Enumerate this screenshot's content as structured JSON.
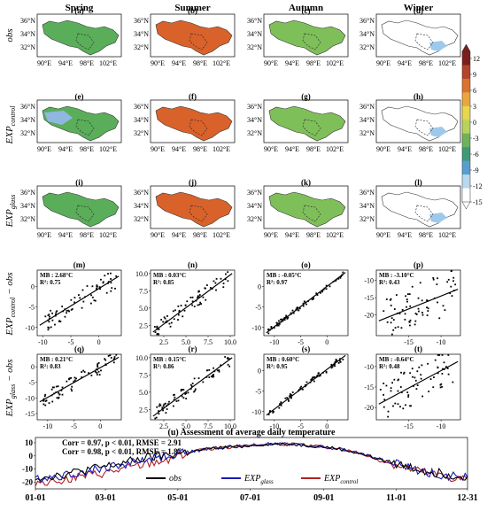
{
  "seasons": [
    "Spring",
    "Summer",
    "Autumn",
    "Winter"
  ],
  "row_labels": {
    "obs": "obs",
    "control_base": "EXP",
    "control_sub": "control",
    "glass_base": "EXP",
    "glass_sub": "glass",
    "diff_obs": "− obs"
  },
  "map_panels": [
    {
      "letter": "(a)",
      "row": 0,
      "col": 0
    },
    {
      "letter": "(b)",
      "row": 0,
      "col": 1
    },
    {
      "letter": "(c)",
      "row": 0,
      "col": 2
    },
    {
      "letter": "(d)",
      "row": 0,
      "col": 3
    },
    {
      "letter": "(e)",
      "row": 1,
      "col": 0
    },
    {
      "letter": "(f)",
      "row": 1,
      "col": 1
    },
    {
      "letter": "(g)",
      "row": 1,
      "col": 2
    },
    {
      "letter": "(h)",
      "row": 1,
      "col": 3
    },
    {
      "letter": "(i)",
      "row": 2,
      "col": 0
    },
    {
      "letter": "(j)",
      "row": 2,
      "col": 1
    },
    {
      "letter": "(k)",
      "row": 2,
      "col": 2
    },
    {
      "letter": "(l)",
      "row": 2,
      "col": 3
    }
  ],
  "map_axes": {
    "lat_labels": [
      "36°N",
      "34°N",
      "32°N"
    ],
    "lon_labels": [
      "90°E",
      "94°E",
      "98°E",
      "102°E"
    ]
  },
  "map_fill": {
    "spring": "#5aae5a",
    "summer": "#d9622b",
    "autumn": "#7fbf5a",
    "winter": "#ffffff"
  },
  "colorbar": {
    "ticks": [
      "12",
      "9",
      "6",
      "3",
      "0",
      "-3",
      "-6",
      "-9",
      "-12",
      "-15"
    ],
    "colors": [
      "#7a1e1e",
      "#b2452b",
      "#d9732f",
      "#eaa63d",
      "#e8d64b",
      "#b9d35a",
      "#6fb25a",
      "#3f9a77",
      "#5a9ed1",
      "#b9d8ee",
      "#ffffff"
    ]
  },
  "scatter_panels": [
    {
      "letter": "(m)",
      "mb": "MB : 2.68°C",
      "r2": "R²: 0.75",
      "xticks": [
        "-10",
        "-5",
        "0"
      ],
      "yticks": [
        "0",
        "-5",
        "-10"
      ],
      "xlim": [
        -11,
        4
      ],
      "ylim": [
        -12,
        4
      ],
      "slope": 0.85,
      "intercept": -0.5
    },
    {
      "letter": "(n)",
      "mb": "MB : 0.03°C",
      "r2": "R²: 0.85",
      "xticks": [
        "2.5",
        "5.0",
        "7.5",
        "10.0"
      ],
      "yticks": [
        "10.0",
        "7.5",
        "5.0",
        "2.5"
      ],
      "xlim": [
        1,
        10.5
      ],
      "ylim": [
        1,
        10.5
      ],
      "slope": 0.95,
      "intercept": 0.3
    },
    {
      "letter": "(o)",
      "mb": "MB : -0.05°C",
      "r2": "R²: 0.97",
      "xticks": [
        "-10",
        "-5",
        "0"
      ],
      "yticks": [
        "0",
        "-5",
        "-10"
      ],
      "xlim": [
        -12,
        4
      ],
      "ylim": [
        -12,
        4
      ],
      "slope": 0.98,
      "intercept": 0.0
    },
    {
      "letter": "(p)",
      "mb": "MB : -3.10°C",
      "r2": "R²: 0.43",
      "xticks": [
        "-15",
        "-10"
      ],
      "yticks": [
        "-10",
        "-15",
        "-20"
      ],
      "xlim": [
        -20,
        -7
      ],
      "ylim": [
        -26,
        -7
      ],
      "slope": 0.75,
      "intercept": -7
    },
    {
      "letter": "(q)",
      "mb": "MB : 0.21°C",
      "r2": "R²: 0.83",
      "xticks": [
        "-10",
        "-5",
        "0"
      ],
      "yticks": [
        "0",
        "-5",
        "-10",
        "-15"
      ],
      "xlim": [
        -12,
        4
      ],
      "ylim": [
        -17,
        4
      ],
      "slope": 0.95,
      "intercept": -0.3
    },
    {
      "letter": "(r)",
      "mb": "MB : 0.15°C",
      "r2": "R²: 0.86",
      "xticks": [
        "2.5",
        "5.0",
        "7.5",
        "10.0"
      ],
      "yticks": [
        "10.0",
        "7.5",
        "5.0",
        "2.5"
      ],
      "xlim": [
        1,
        10.5
      ],
      "ylim": [
        1,
        10.5
      ],
      "slope": 0.95,
      "intercept": 0.3
    },
    {
      "letter": "(s)",
      "mb": "MB : 0.60°C",
      "r2": "R²: 0.95",
      "xticks": [
        "-10",
        "-5",
        "0"
      ],
      "yticks": [
        "0",
        "-5",
        "-10"
      ],
      "xlim": [
        -12,
        4
      ],
      "ylim": [
        -12,
        4
      ],
      "slope": 0.97,
      "intercept": 0.3
    },
    {
      "letter": "(t)",
      "mb": "MB : -0.64°C",
      "r2": "R²: 0.48",
      "xticks": [
        "-15",
        "-10"
      ],
      "yticks": [
        "-10",
        "-15",
        "-20"
      ],
      "xlim": [
        -20,
        -7
      ],
      "ylim": [
        -23,
        -7
      ],
      "slope": 0.85,
      "intercept": -2.5
    }
  ],
  "timeseries": {
    "title": "(u) Assessment of average daily temperature",
    "stat_control": "Corr = 0.97, p < 0.01, RMSE = 2.91",
    "stat_glass": "Corr = 0.98,  p < 0.01, RMSE = 1.85",
    "xticks": [
      "01-01",
      "03-01",
      "05-01",
      "07-01",
      "09-01",
      "11-01",
      "12-31"
    ],
    "xtick_days": [
      0,
      59,
      120,
      181,
      243,
      304,
      364
    ],
    "yticks": [
      "10",
      "0",
      "-10",
      "-20"
    ],
    "ylim": [
      -25,
      14
    ],
    "legend": [
      {
        "name": "obs",
        "color": "#000000"
      },
      {
        "name": "EXP",
        "sub": "glass",
        "color": "#1a1ab8"
      },
      {
        "name": "EXP",
        "sub": "control",
        "color": "#b22222"
      }
    ]
  },
  "chart_data": {
    "type": "line",
    "title": "(u) Assessment of average daily temperature",
    "xlabel": "",
    "ylabel": "",
    "x_range": [
      "01-01",
      "12-31"
    ],
    "ylim": [
      -25,
      14
    ],
    "x": [
      "01-01",
      "01-15",
      "02-01",
      "02-15",
      "03-01",
      "03-15",
      "04-01",
      "04-15",
      "05-01",
      "05-15",
      "06-01",
      "06-15",
      "07-01",
      "07-15",
      "08-01",
      "08-15",
      "09-01",
      "09-15",
      "10-01",
      "10-15",
      "11-01",
      "11-15",
      "12-01",
      "12-15",
      "12-31"
    ],
    "series": [
      {
        "name": "obs",
        "values": [
          -16,
          -15,
          -13,
          -10,
          -8,
          -5,
          -2,
          0,
          2,
          4,
          6,
          7,
          8,
          9,
          9,
          8,
          7,
          5,
          2,
          -2,
          -6,
          -9,
          -12,
          -14,
          -15
        ]
      },
      {
        "name": "EXP_glass",
        "values": [
          -17,
          -16,
          -14,
          -11,
          -9,
          -6,
          -3,
          -1,
          2,
          4,
          6,
          7,
          8,
          9,
          9,
          8,
          7,
          5,
          2,
          -2,
          -6,
          -10,
          -13,
          -15,
          -16
        ]
      },
      {
        "name": "EXP_control",
        "values": [
          -20,
          -19,
          -17,
          -15,
          -13,
          -10,
          -7,
          -4,
          1,
          4,
          6,
          7,
          8,
          9,
          9,
          8,
          7,
          5,
          2,
          -3,
          -7,
          -11,
          -14,
          -17,
          -18
        ]
      }
    ]
  }
}
